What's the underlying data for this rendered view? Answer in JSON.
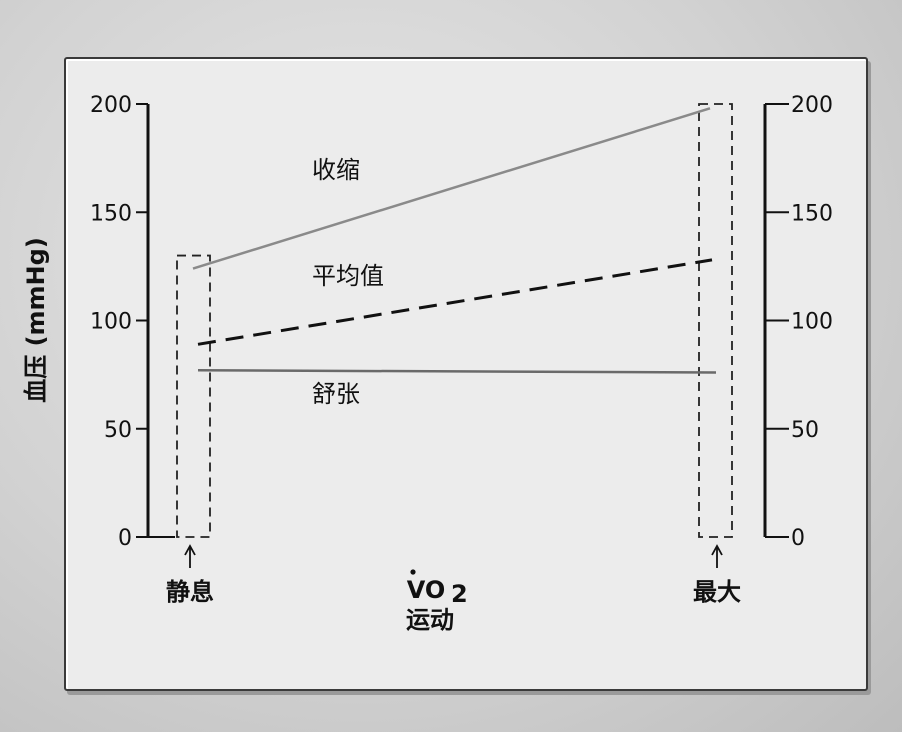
{
  "chart_data": {
    "type": "line",
    "ylabel": "血压 (mmHg)",
    "ylim": [
      0,
      200
    ],
    "yticks": [
      0,
      50,
      100,
      150,
      200
    ],
    "yticks_right": [
      0,
      50,
      100,
      150,
      200
    ],
    "x_start_label": "静息",
    "x_end_label": "最大",
    "x_center_label_main": "VO",
    "x_center_label_sub": "2",
    "x_center_label_sub2": "运动",
    "series": [
      {
        "name": "收缩",
        "start": 124,
        "end": 198,
        "style": "solid",
        "color": "#8a8a8a"
      },
      {
        "name": "平均值",
        "start": 89,
        "end": 128,
        "style": "dashed",
        "color": "#111111"
      },
      {
        "name": "舒张",
        "start": 77,
        "end": 76,
        "style": "solid",
        "color": "#6a6a6a"
      }
    ],
    "left_box_top": 130,
    "right_box_top": 200
  }
}
